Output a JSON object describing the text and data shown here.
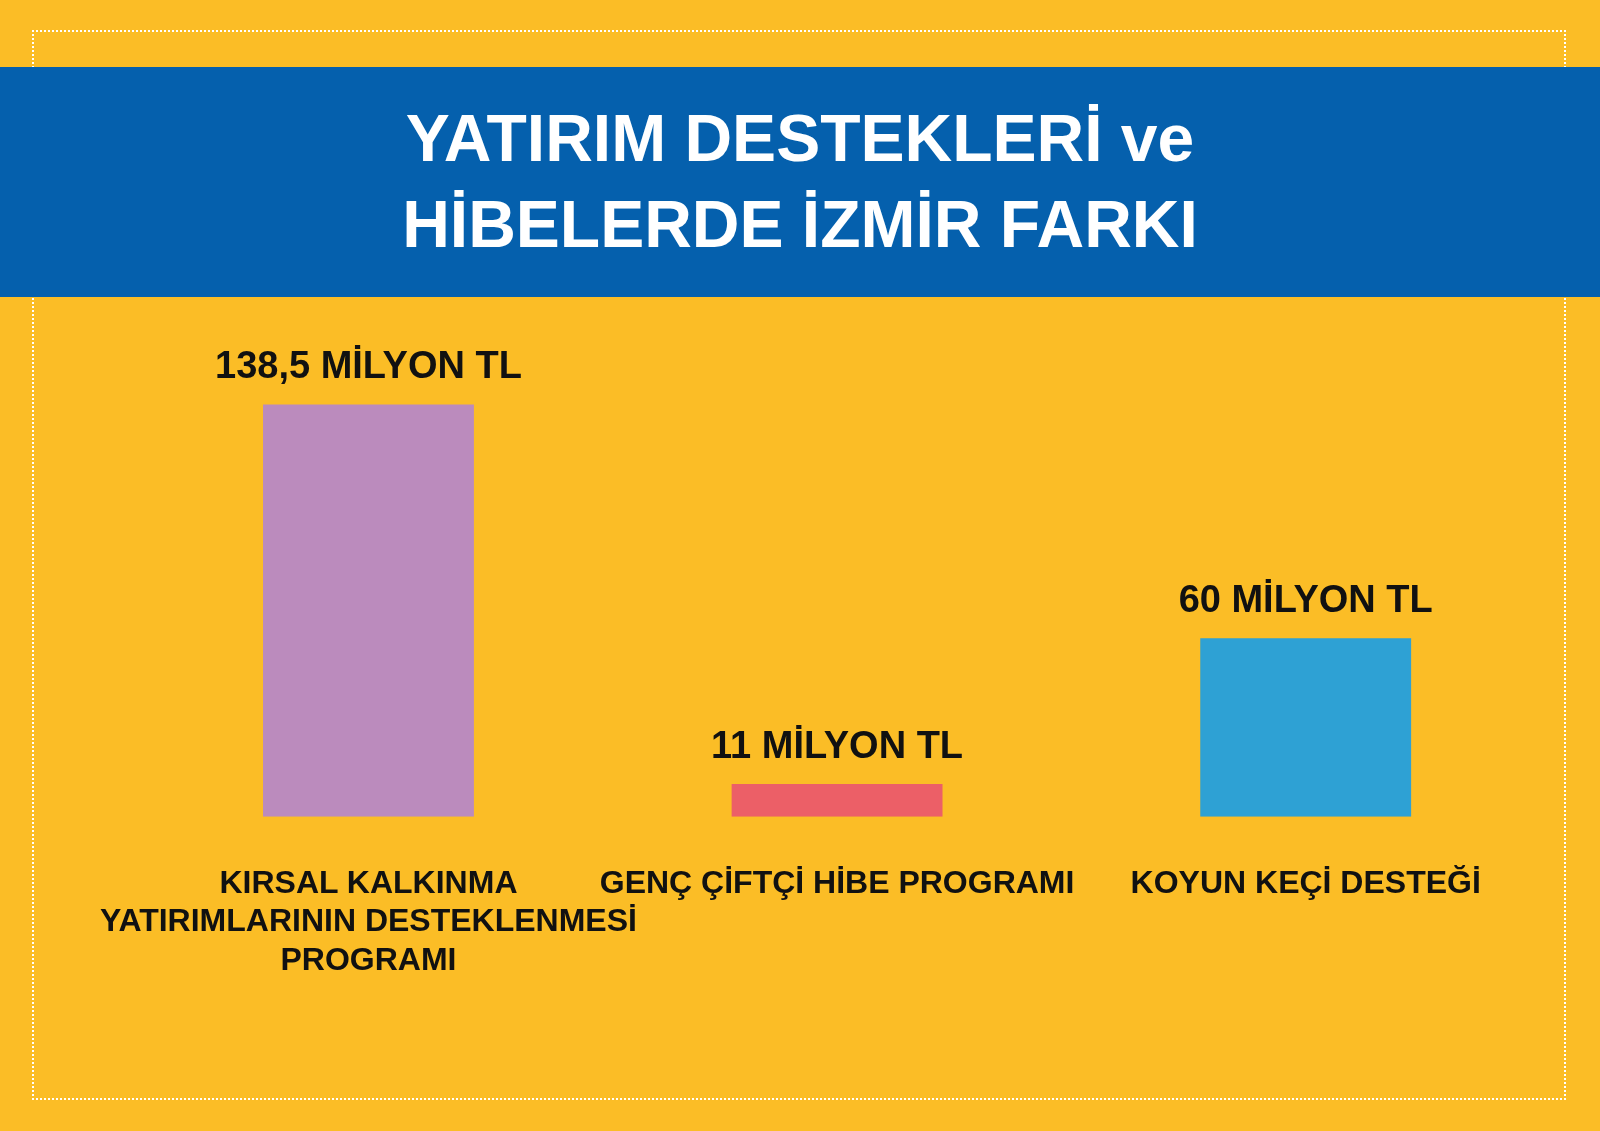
{
  "chart_data": {
    "type": "bar",
    "title": "YATIRIM DESTEKLERİ ve HİBELERDE İZMİR FARKI",
    "categories": [
      "KIRSAL KALKINMA YATIRIMLARININ DESTEKLENMESİ PROGRAMI",
      "GENÇ ÇİFTÇİ HİBE PROGRAMI",
      "KOYUN KEÇİ DESTEĞİ"
    ],
    "values": [
      138.5,
      11,
      60
    ],
    "colors": [
      "#bb8bbd",
      "#ec5f67",
      "#2ea1d4"
    ],
    "value_labels": [
      "138,5 MİLYON TL",
      "11 MİLYON TL",
      "60 MİLYON TL"
    ]
  }
}
